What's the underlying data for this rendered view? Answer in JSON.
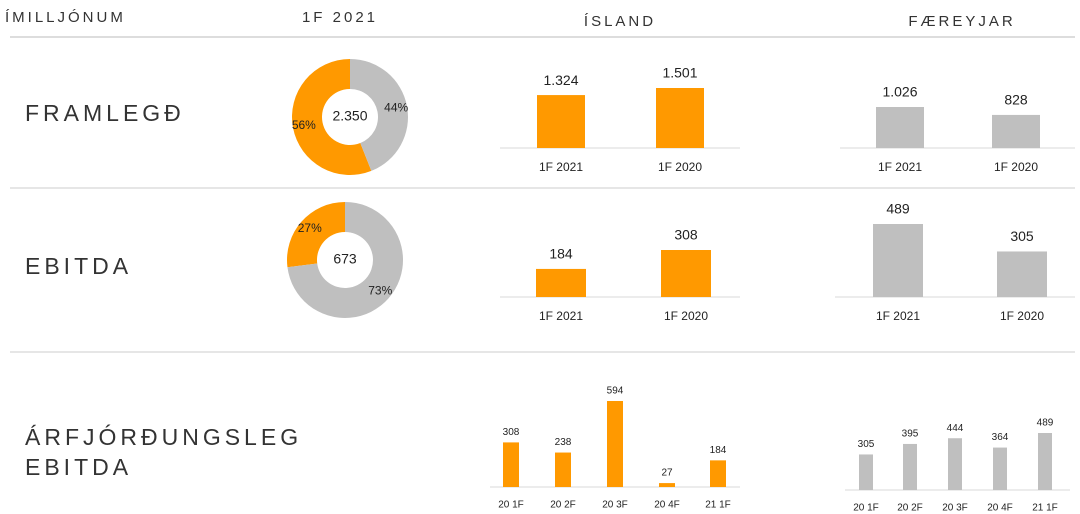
{
  "header": {
    "unit_label": "ÍMILLJÓNUM",
    "period": "1F 2021",
    "col1": "ÍSLAND",
    "col2": "FÆREYJAR"
  },
  "rows": [
    [
      "FRAMLEGÐ"
    ],
    [
      "EBITDA"
    ],
    [
      "ÁRFJÓRÐUNGSLEG",
      "EBITDA"
    ]
  ],
  "chart_data": [
    {
      "type": "pie",
      "values": [
        56,
        44
      ],
      "value_labels": [
        "56%",
        "44%"
      ],
      "colors": [
        "#ff9900",
        "#bfbfbf"
      ],
      "center": {
        "value": 2350,
        "label": "2.350"
      }
    },
    {
      "type": "bar",
      "categories": [
        "1F 2021",
        "1F 2020"
      ],
      "values": [
        1324,
        1501
      ],
      "value_labels": [
        "1.324",
        "1.501"
      ],
      "color": "#ff9900"
    },
    {
      "type": "bar",
      "categories": [
        "1F 2021",
        "1F 2020"
      ],
      "values": [
        1026,
        828
      ],
      "value_labels": [
        "1.026",
        "828"
      ],
      "color": "#bfbfbf"
    },
    {
      "type": "pie",
      "values": [
        27,
        73
      ],
      "value_labels": [
        "27%",
        "73%"
      ],
      "colors": [
        "#ff9900",
        "#bfbfbf"
      ],
      "center": 673
    },
    {
      "type": "bar",
      "categories": [
        "1F 2021",
        "1F 2020"
      ],
      "values": [
        184,
        308
      ],
      "color": "#ff9900"
    },
    {
      "type": "bar",
      "categories": [
        "1F 2021",
        "1F 2020"
      ],
      "values": [
        489,
        305
      ],
      "color": "#bfbfbf"
    },
    {
      "type": "bar",
      "categories": [
        "20 1F",
        "20 2F",
        "20 3F",
        "20 4F",
        "21 1F"
      ],
      "values": [
        308,
        238,
        594,
        27,
        184
      ],
      "color": "#ff9900"
    },
    {
      "type": "bar",
      "categories": [
        "20 1F",
        "20 2F",
        "20 3F",
        "20 4F",
        "21 1F"
      ],
      "values": [
        305,
        395,
        444,
        364,
        489
      ],
      "color": "#bfbfbf"
    }
  ]
}
